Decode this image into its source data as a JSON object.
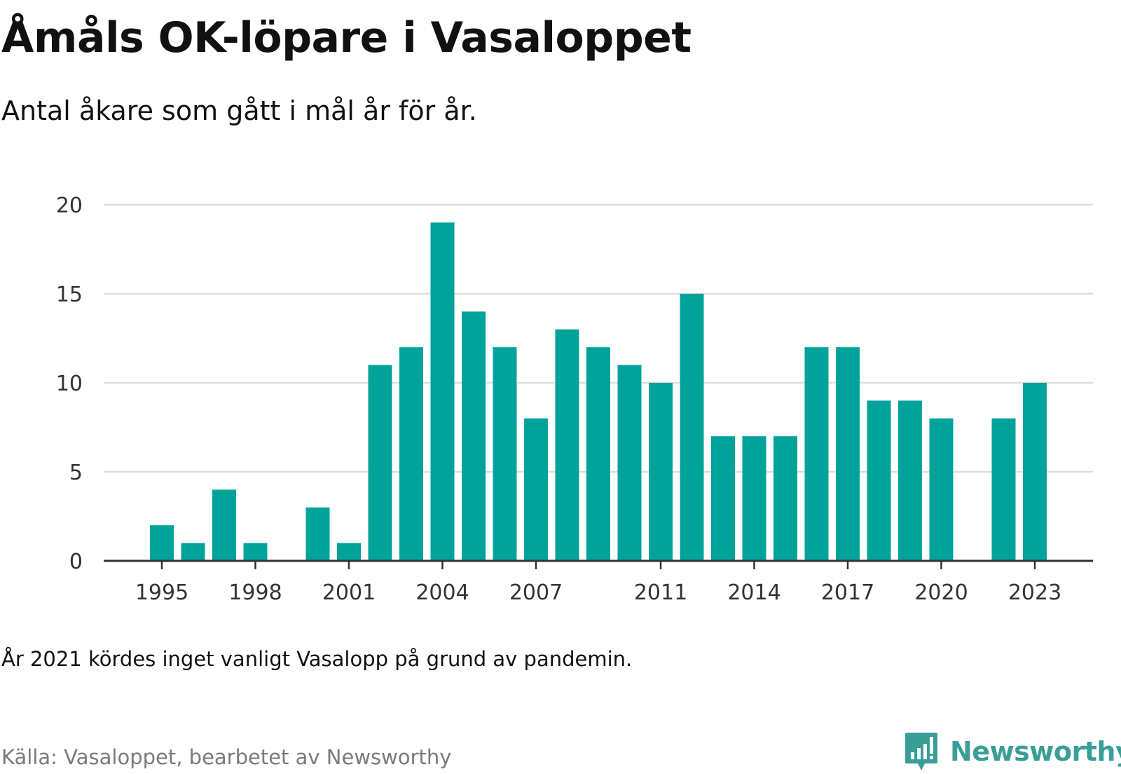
{
  "header": {
    "title": "Åmåls OK-löpare i Vasaloppet",
    "subtitle": "Antal åkare som gått i mål år för år."
  },
  "footer": {
    "note": "År 2021 kördes inget vanligt Vasalopp på grund av pandemin.",
    "source": "Källa: Vasaloppet, bearbetet av Newsworthy"
  },
  "logo": {
    "text": "Newsworthy",
    "icon": "newsworthy-logo-icon",
    "color": "#3a9e97"
  },
  "colors": {
    "bar": "#00a39a",
    "grid": "#dddddd",
    "axis": "#333333"
  },
  "chart_data": {
    "type": "bar",
    "title": "Åmåls OK-löpare i Vasaloppet",
    "subtitle": "Antal åkare som gått i mål år för år.",
    "xlabel": "",
    "ylabel": "",
    "ylim": [
      0,
      20
    ],
    "yticks": [
      0,
      5,
      10,
      15,
      20
    ],
    "xticks": [
      "1995",
      "1998",
      "2001",
      "2004",
      "2007",
      "2011",
      "2014",
      "2017",
      "2020",
      "2023"
    ],
    "grid": true,
    "categories": [
      "1995",
      "1996",
      "1997",
      "1998",
      "1999",
      "2000",
      "2001",
      "2002",
      "2003",
      "2004",
      "2005",
      "2006",
      "2007",
      "2008",
      "2009",
      "2010",
      "2011",
      "2012",
      "2013",
      "2014",
      "2015",
      "2016",
      "2017",
      "2018",
      "2019",
      "2020",
      "2021",
      "2022",
      "2023"
    ],
    "values": [
      2,
      1,
      4,
      1,
      0,
      3,
      1,
      11,
      12,
      19,
      14,
      12,
      8,
      13,
      12,
      11,
      10,
      15,
      7,
      7,
      7,
      12,
      12,
      9,
      9,
      8,
      null,
      8,
      10
    ]
  }
}
